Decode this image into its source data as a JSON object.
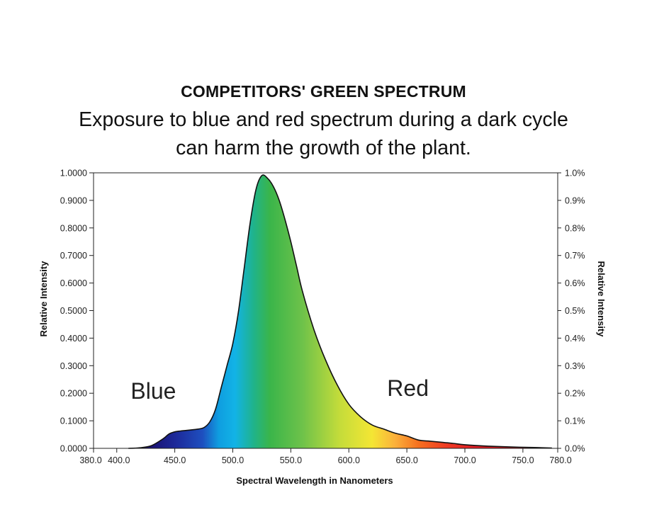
{
  "chart_data": {
    "type": "area",
    "title": "COMPETITORS' GREEN SPECTRUM",
    "subtitle": "Exposure to blue and red spectrum during a dark cycle can harm the growth of the plant.",
    "xlabel": "Spectral Wavelength in Nanometers",
    "ylabel": "Relative Intensity",
    "y2label": "Relative Intensity",
    "xlim": [
      380,
      780
    ],
    "ylim": [
      0,
      1
    ],
    "x_ticks": [
      "380.0",
      "400.0",
      "450.0",
      "500.0",
      "550.0",
      "600.0",
      "650.0",
      "700.0",
      "750.0",
      "780.0"
    ],
    "y_ticks": [
      "0.0000",
      "0.1000",
      "0.2000",
      "0.3000",
      "0.4000",
      "0.5000",
      "0.6000",
      "0.7000",
      "0.8000",
      "0.9000",
      "1.0000"
    ],
    "y2_ticks": [
      "0.0%",
      "0.1%",
      "0.2%",
      "0.3%",
      "0.4%",
      "0.5%",
      "0.6%",
      "0.7%",
      "0.8%",
      "0.9%",
      "1.0%"
    ],
    "annotations": [
      {
        "text": "Blue",
        "x": 412,
        "y": 0.18
      },
      {
        "text": "Red",
        "x": 633,
        "y": 0.19
      }
    ],
    "grid": false,
    "series": [
      {
        "x": [
          410,
          420,
          430,
          440,
          445,
          450,
          455,
          460,
          470,
          475,
          480,
          485,
          490,
          495,
          500,
          505,
          510,
          515,
          520,
          525,
          530,
          535,
          540,
          545,
          550,
          555,
          560,
          570,
          580,
          590,
          600,
          610,
          620,
          630,
          640,
          650,
          660,
          670,
          680,
          690,
          700,
          720,
          740,
          760,
          775
        ],
        "y": [
          0,
          0.002,
          0.01,
          0.035,
          0.052,
          0.06,
          0.063,
          0.065,
          0.07,
          0.075,
          0.095,
          0.14,
          0.22,
          0.3,
          0.38,
          0.5,
          0.66,
          0.82,
          0.94,
          0.99,
          0.98,
          0.95,
          0.9,
          0.83,
          0.75,
          0.66,
          0.57,
          0.43,
          0.32,
          0.23,
          0.16,
          0.115,
          0.085,
          0.07,
          0.055,
          0.045,
          0.03,
          0.026,
          0.022,
          0.018,
          0.013,
          0.008,
          0.005,
          0.003,
          0.001
        ]
      }
    ]
  }
}
